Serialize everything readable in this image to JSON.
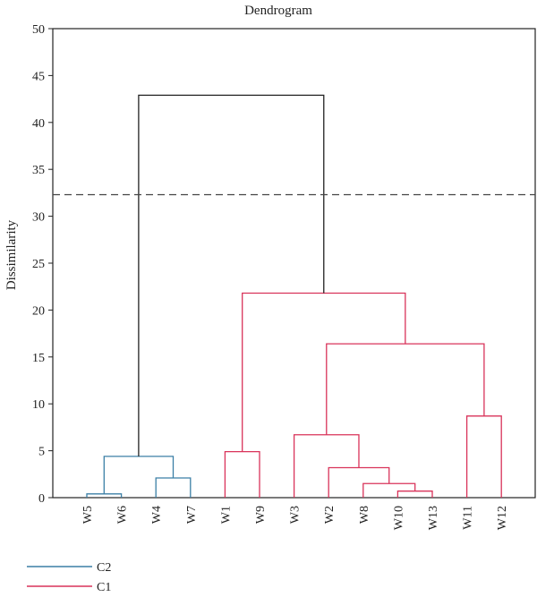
{
  "chart_data": {
    "type": "dendrogram",
    "title": "Dendrogram",
    "ylabel": "Dissimilarity",
    "xlabel": "",
    "ylim": [
      0,
      50
    ],
    "yticks": [
      0,
      5,
      10,
      15,
      20,
      25,
      30,
      35,
      40,
      45,
      50
    ],
    "leaves": [
      "W5",
      "W6",
      "W4",
      "W7",
      "W1",
      "W9",
      "W3",
      "W2",
      "W8",
      "W10",
      "W13",
      "W11",
      "W12"
    ],
    "cut_height": 32.3,
    "merges": [
      {
        "left": "W5",
        "right": "W6",
        "height": 0.4,
        "cluster": "C2"
      },
      {
        "left": "W4",
        "right": "W7",
        "height": 2.1,
        "cluster": "C2"
      },
      {
        "left": [
          "W5",
          "W6"
        ],
        "right": [
          "W4",
          "W7"
        ],
        "height": 4.4,
        "cluster": "C2"
      },
      {
        "left": "W10",
        "right": "W13",
        "height": 0.7,
        "cluster": "C1"
      },
      {
        "left": "W8",
        "right": [
          "W10",
          "W13"
        ],
        "height": 1.5,
        "cluster": "C1"
      },
      {
        "left": "W2",
        "right": [
          "W8",
          "W10",
          "W13"
        ],
        "height": 3.2,
        "cluster": "C1"
      },
      {
        "left": "W3",
        "right": [
          "W2",
          "W8",
          "W10",
          "W13"
        ],
        "height": 6.7,
        "cluster": "C1"
      },
      {
        "left": "W11",
        "right": "W12",
        "height": 8.7,
        "cluster": "C1"
      },
      {
        "left": [
          "W3",
          "W2",
          "W8",
          "W10",
          "W13"
        ],
        "right": [
          "W11",
          "W12"
        ],
        "height": 16.4,
        "cluster": "C1"
      },
      {
        "left": "W1",
        "right": "W9",
        "height": 4.9,
        "cluster": "C1"
      },
      {
        "left": [
          "W1",
          "W9"
        ],
        "right": [
          "W3",
          "W2",
          "W8",
          "W10",
          "W13",
          "W11",
          "W12"
        ],
        "height": 21.8,
        "cluster": "C1"
      },
      {
        "left": "C2",
        "right": "C1",
        "height": 42.9,
        "cluster": "root"
      }
    ],
    "legend": [
      {
        "name": "C2",
        "color": "#3b7fa6"
      },
      {
        "name": "C1",
        "color": "#d9335a"
      }
    ],
    "colors": {
      "C2": "#3b7fa6",
      "C1": "#d9335a",
      "root": "#222222",
      "cut": "#444444"
    }
  }
}
